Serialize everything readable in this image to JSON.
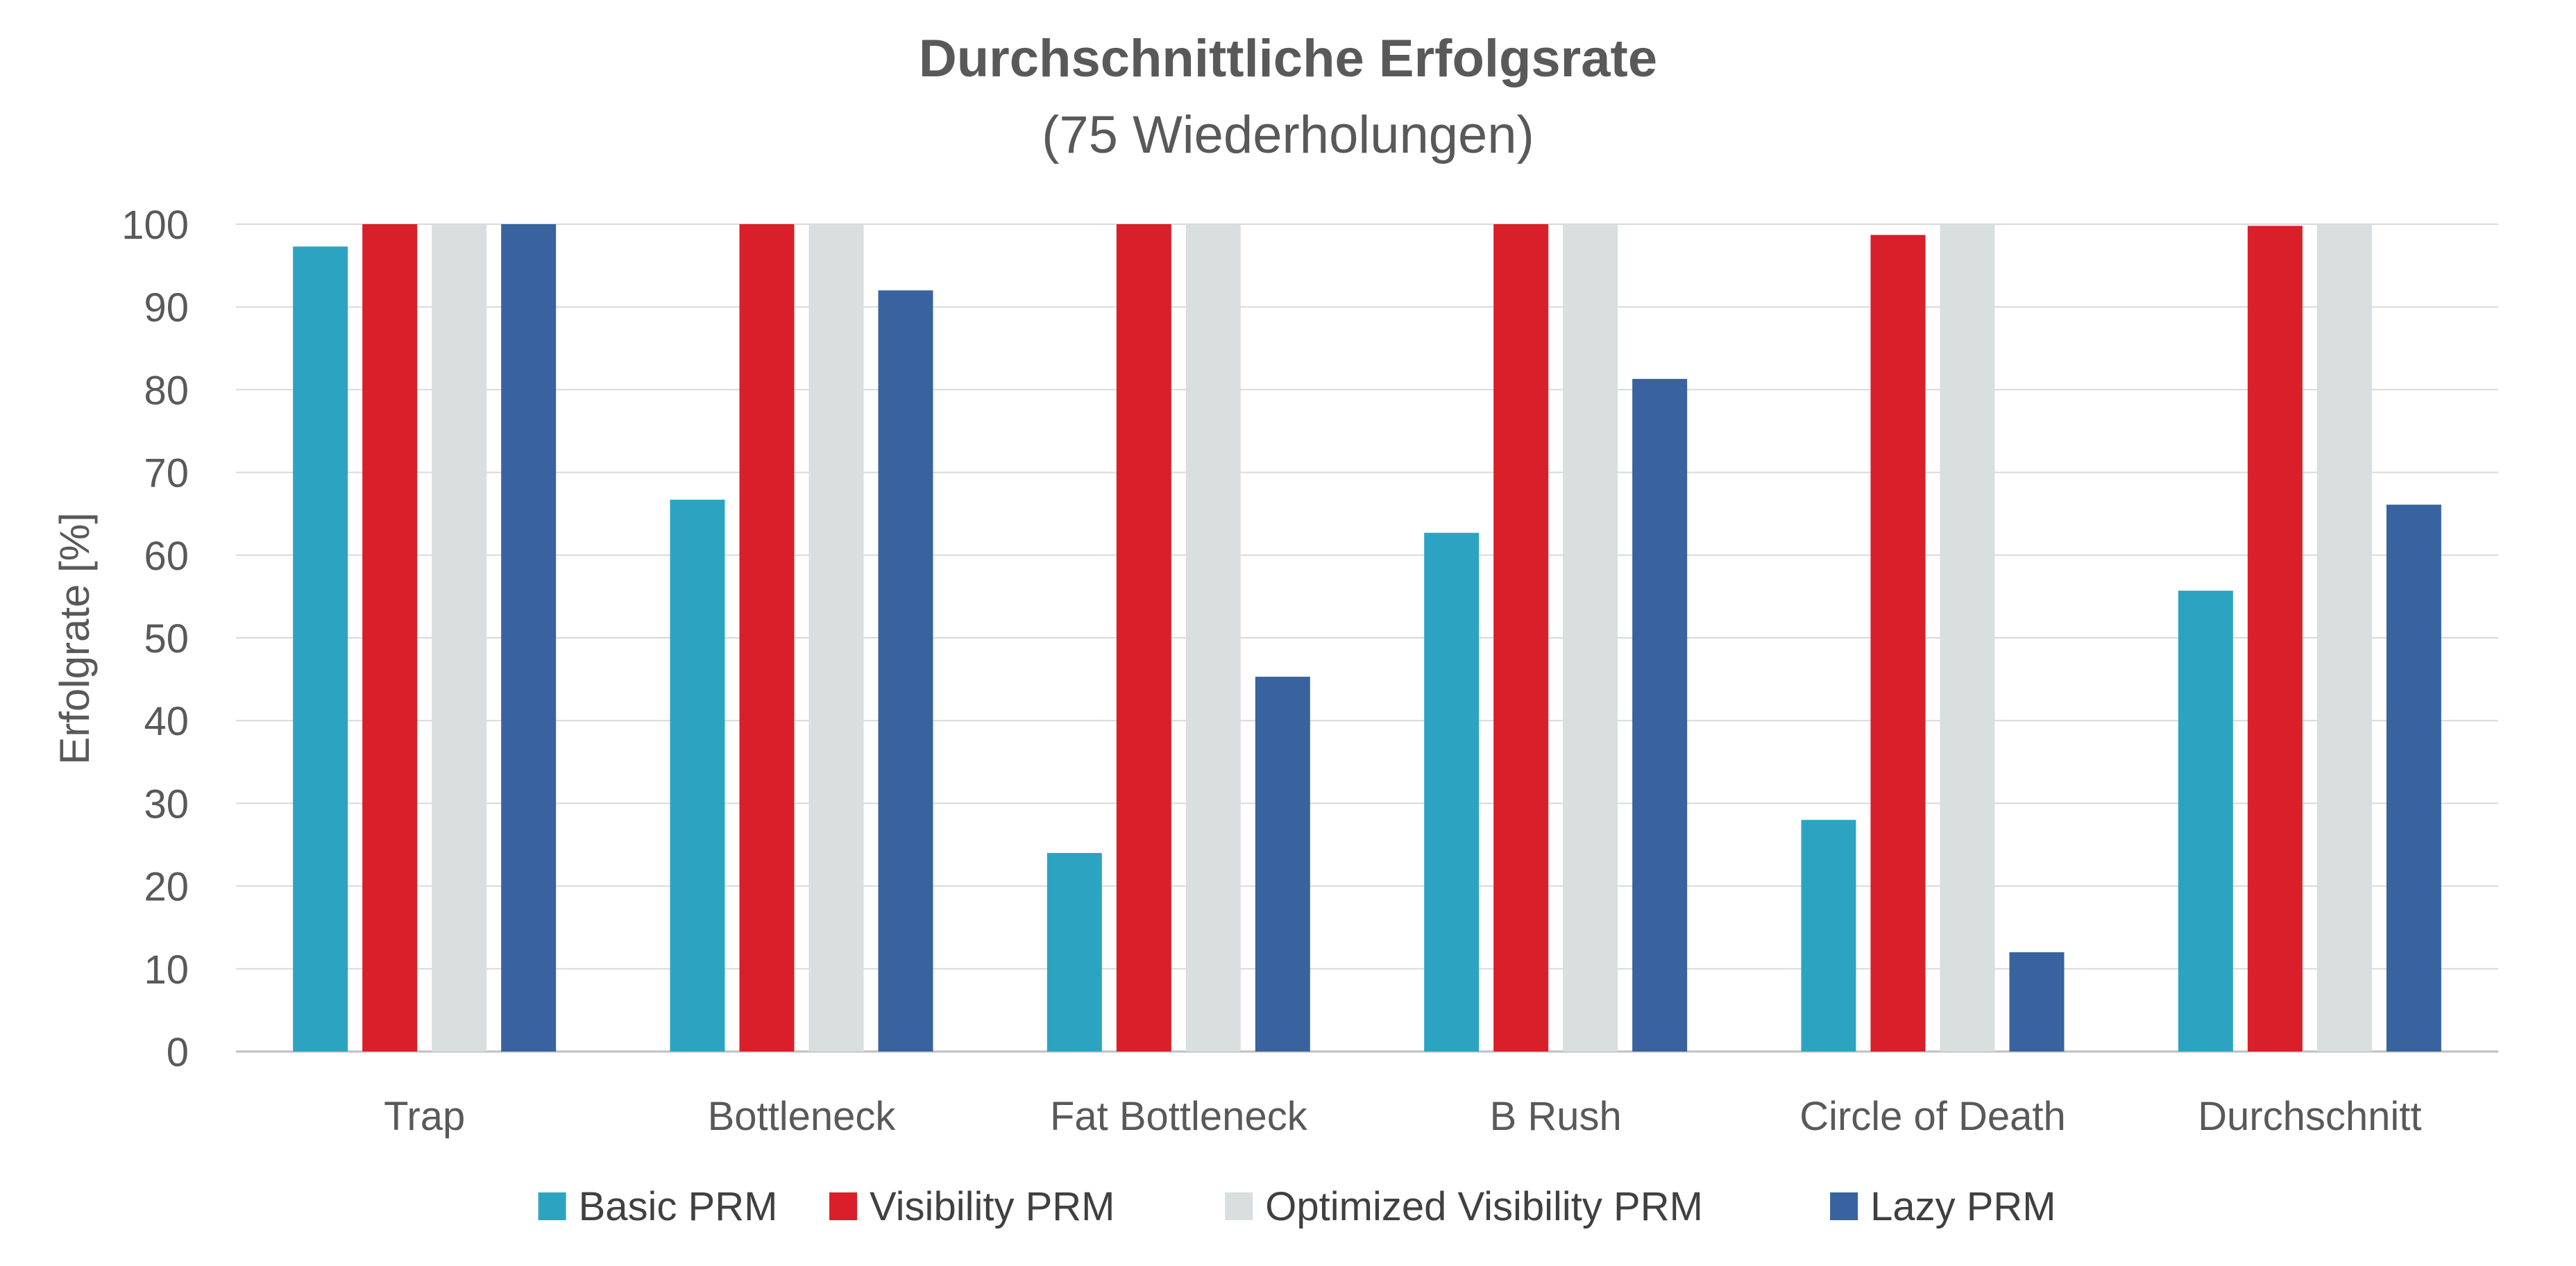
{
  "chart_data": {
    "type": "bar",
    "title": "Durchschnittliche Erfolgsrate",
    "subtitle": "(75 Wiederholungen)",
    "xlabel": "",
    "ylabel": "Erfolgrate [%]",
    "ylim": [
      0,
      100
    ],
    "yticks": [
      0,
      10,
      20,
      30,
      40,
      50,
      60,
      70,
      80,
      90,
      100
    ],
    "grid": true,
    "legend_position": "bottom",
    "categories": [
      "Trap",
      "Bottleneck",
      "Fat Bottleneck",
      "B Rush",
      "Circle of Death",
      "Durchschnitt"
    ],
    "series": [
      {
        "name": "Basic PRM",
        "color": "#2ca4c1",
        "values": [
          97.3,
          66.7,
          24,
          62.7,
          28,
          55.7
        ]
      },
      {
        "name": "Visibility PRM",
        "color": "#d91f2a",
        "values": [
          100,
          100,
          100,
          100,
          98.7,
          99.8
        ]
      },
      {
        "name": "Optimized Visibility PRM",
        "color": "#d9dedf",
        "values": [
          100,
          100,
          100,
          100,
          100,
          100
        ]
      },
      {
        "name": "Lazy PRM",
        "color": "#38639e",
        "values": [
          100,
          92,
          45.3,
          81.3,
          12,
          66.1
        ]
      }
    ]
  }
}
